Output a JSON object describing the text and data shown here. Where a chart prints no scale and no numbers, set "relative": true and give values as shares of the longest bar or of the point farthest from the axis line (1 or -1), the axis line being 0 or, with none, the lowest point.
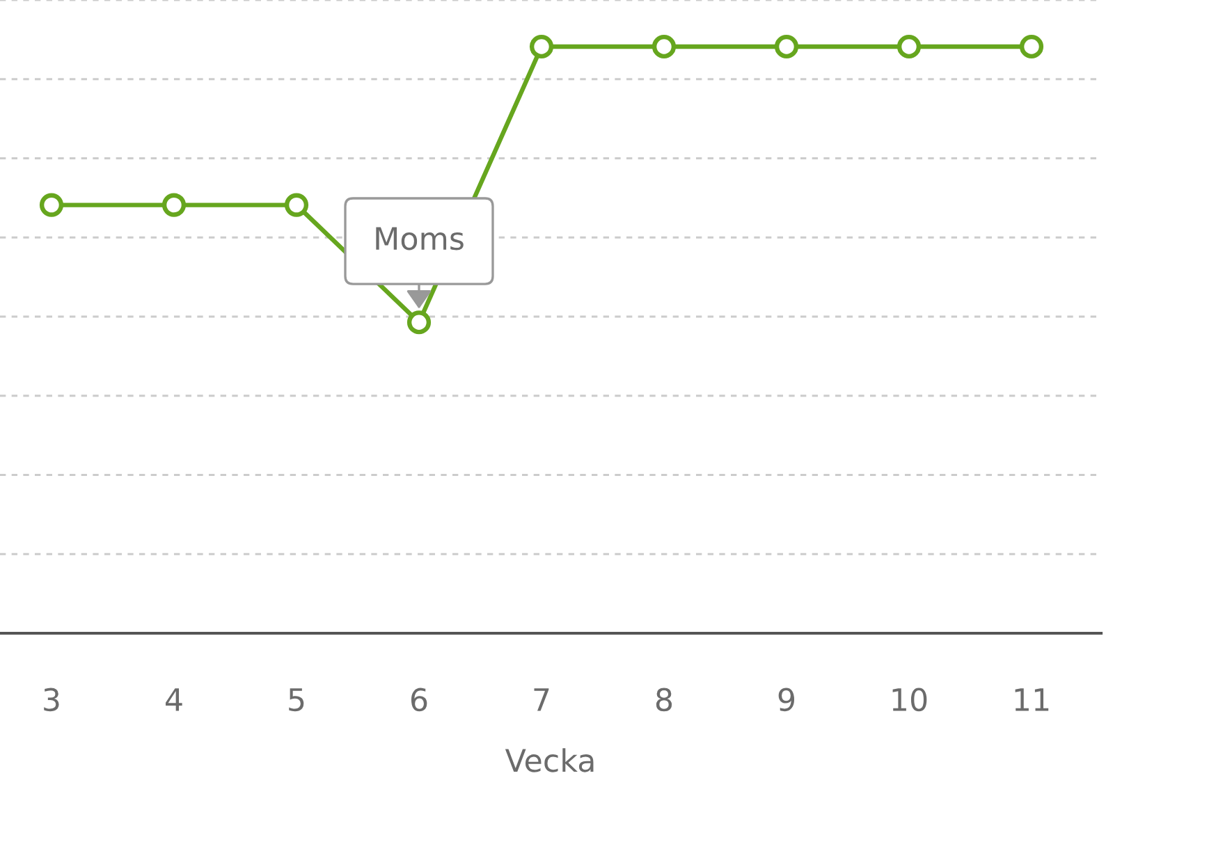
{
  "chart_data": {
    "type": "line",
    "relative": true,
    "xlabel": "Vecka",
    "categories": [
      "3",
      "4",
      "5",
      "6",
      "7",
      "8",
      "9",
      "10",
      "11"
    ],
    "series": [
      {
        "color": "#66a61e",
        "values": [
          0.73,
          0.73,
          0.73,
          0.53,
          1,
          1,
          1,
          1,
          1
        ]
      }
    ],
    "annotations": [
      {
        "text": "Moms",
        "x": "6",
        "y": 0.53
      }
    ],
    "grid": "y",
    "marker": "circle",
    "line_style": "solid",
    "legend": false
  }
}
